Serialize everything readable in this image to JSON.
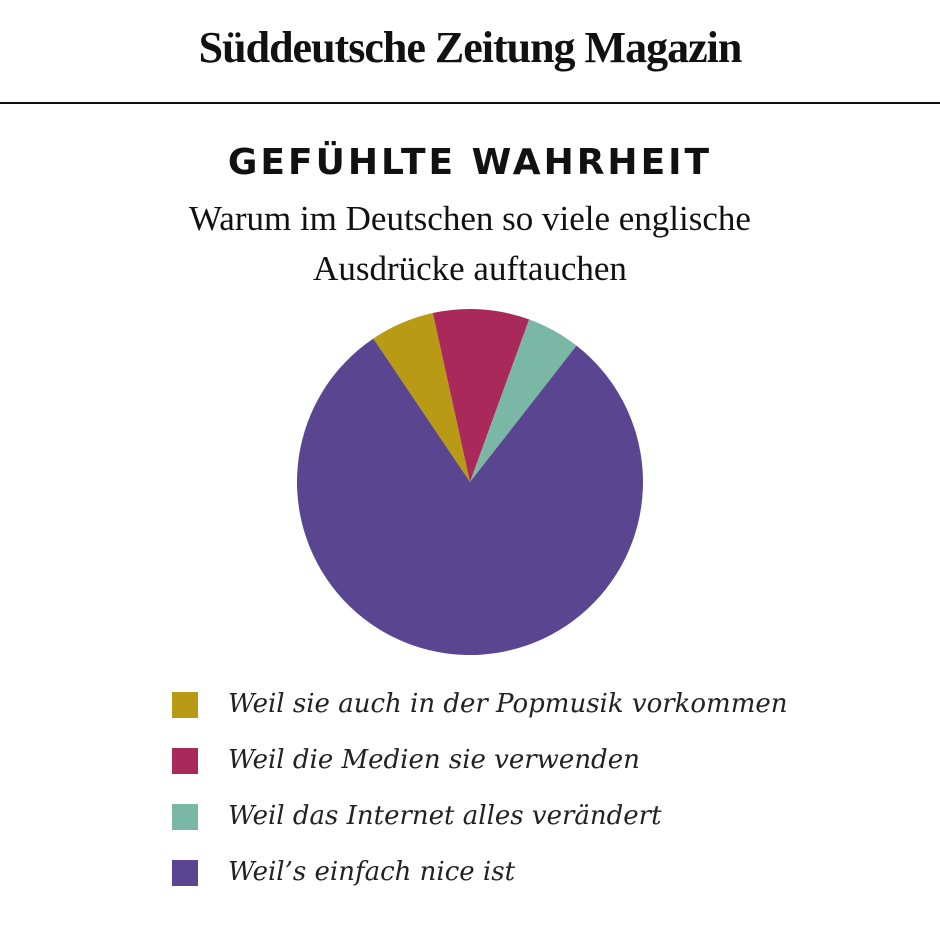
{
  "brand": "Süddeutsche Zeitung Magazin",
  "chart_data": {
    "type": "pie",
    "title": "GEFÜHLTE WAHRHEIT",
    "subtitle": "Warum im Deutschen so viele englische Ausdrücke auftauchen",
    "categories": [
      "Weil sie auch in der Popmusik vorkommen",
      "Weil die Medien sie verwenden",
      "Weil das Internet alles verändert",
      "Weil’s einfach nice ist"
    ],
    "values": [
      6,
      9,
      5,
      80
    ],
    "colors": [
      "#b89a14",
      "#a8295a",
      "#7ab8a5",
      "#5a4590"
    ]
  }
}
